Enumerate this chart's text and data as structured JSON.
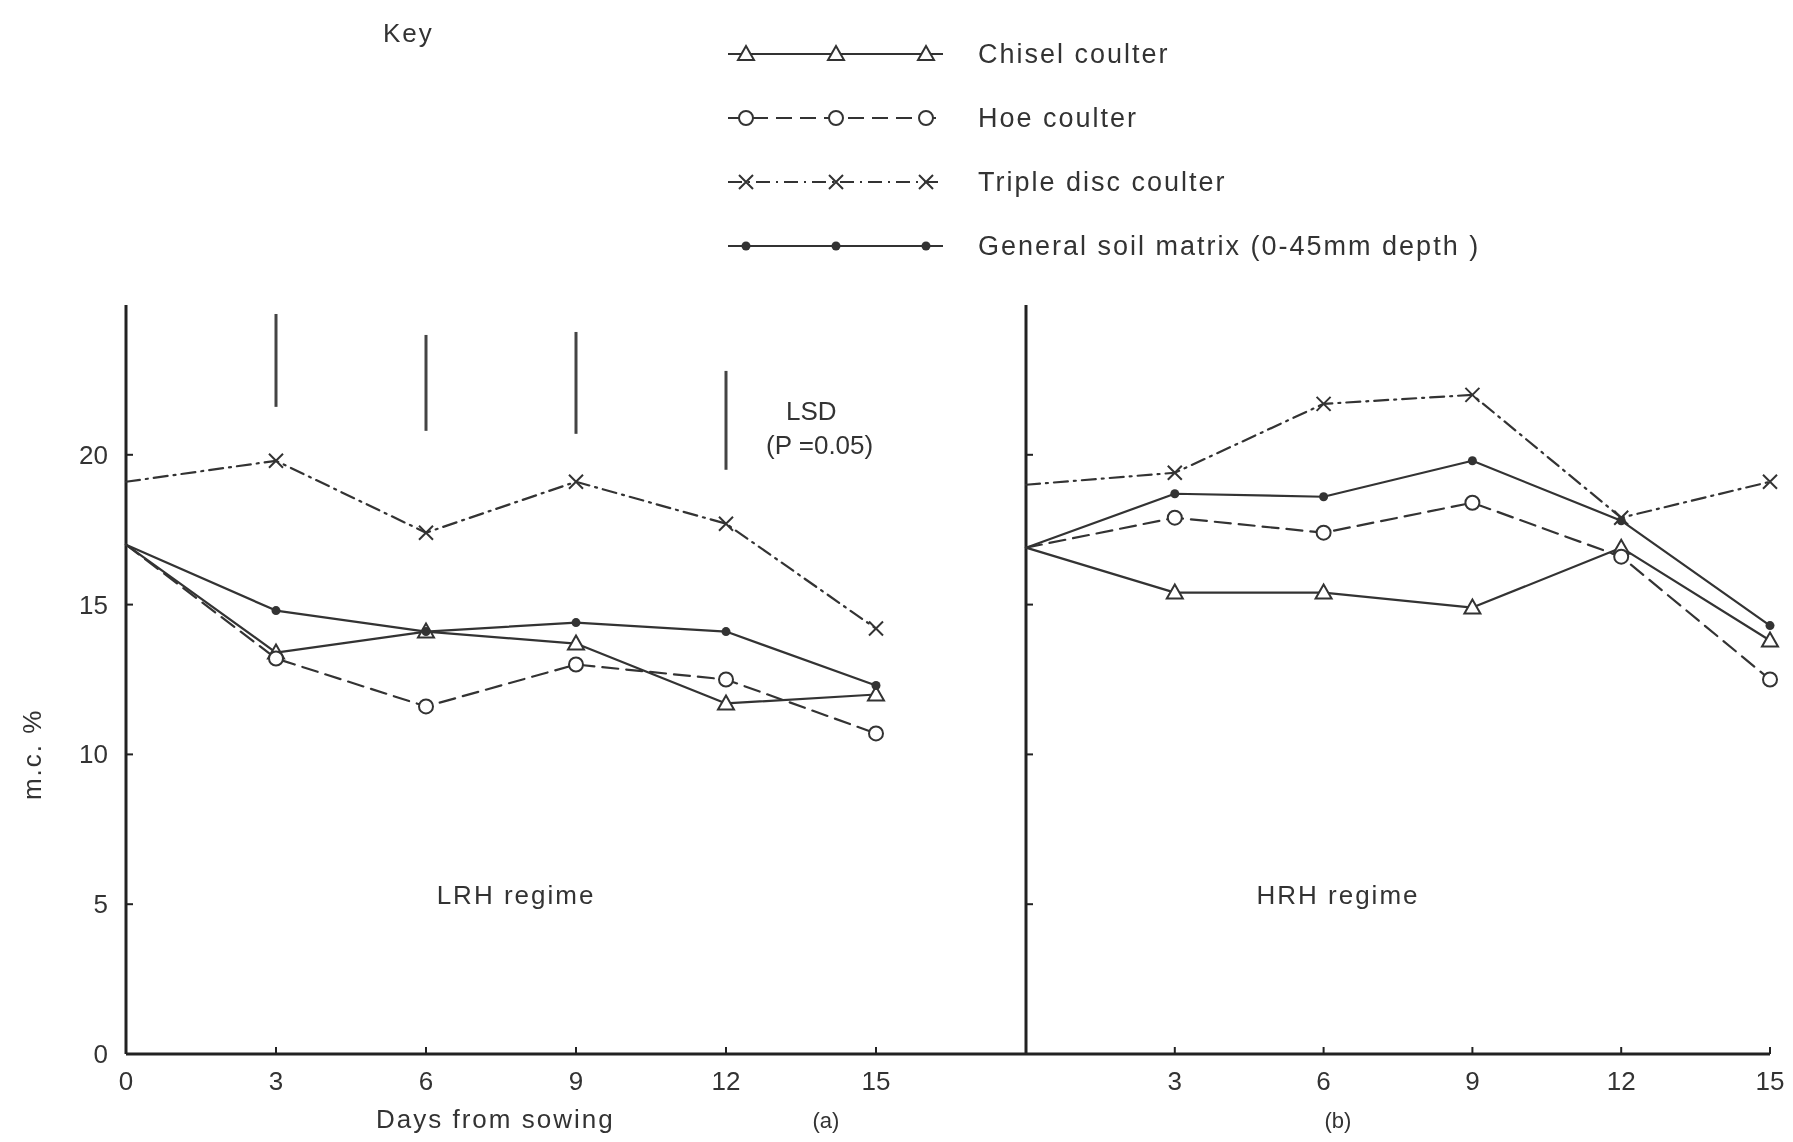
{
  "chart_data": [
    {
      "type": "line",
      "legend_title": "Key",
      "legend": "top",
      "xlabel": "Days from sowing",
      "ylabel": "m.c. %",
      "annotations": [
        "LRH regime",
        "(a)"
      ],
      "x": [
        0,
        3,
        6,
        9,
        12,
        15
      ],
      "xlim": [
        0,
        18
      ],
      "xticks": [
        0,
        3,
        6,
        9,
        12,
        15
      ],
      "ylim": [
        0,
        25
      ],
      "yticks": [
        0,
        5,
        10,
        15,
        20
      ],
      "series": [
        {
          "name": "Chisel coulter",
          "color": "#333333",
          "marker": "triangle",
          "line_style": "solid",
          "values": [
            17.0,
            13.4,
            14.1,
            13.7,
            11.7,
            12.0
          ]
        },
        {
          "name": "Hoe coulter",
          "color": "#333333",
          "marker": "circle",
          "line_style": "dashed",
          "values": [
            17.0,
            13.2,
            11.6,
            13.0,
            12.5,
            10.7
          ]
        },
        {
          "name": "Triple disc coulter",
          "color": "#333333",
          "marker": "cross",
          "line_style": "dashdot",
          "values": [
            19.1,
            19.8,
            17.4,
            19.1,
            17.7,
            14.2
          ]
        },
        {
          "name": "General soil matrix (0-45mm depth )",
          "color": "#333333",
          "marker": "circle",
          "line_style": "solid",
          "values": [
            17.0,
            14.8,
            14.1,
            14.4,
            14.1,
            12.3
          ]
        },
        {
          "name": "LSD (P =0.05)",
          "type": "bar",
          "color": "#444444",
          "x": [
            3,
            6,
            9,
            12
          ],
          "base": [
            21.6,
            20.8,
            20.7,
            19.5
          ],
          "values": [
            3.1,
            3.2,
            3.4,
            3.3
          ]
        }
      ]
    },
    {
      "type": "line",
      "legend": false,
      "tick_labels": "x",
      "annotations": [
        "HRH regime",
        "(b)"
      ],
      "x": [
        0,
        3,
        6,
        9,
        12,
        15
      ],
      "xlim": [
        0,
        15
      ],
      "xticks": [
        {
          "value": 0,
          "label": null
        },
        3,
        6,
        9,
        12,
        15
      ],
      "ylim": [
        0,
        25
      ],
      "yticks": [
        {
          "value": 0,
          "label": null
        },
        {
          "value": 5,
          "label": null
        },
        {
          "value": 10,
          "label": null
        },
        {
          "value": 15,
          "label": null
        },
        {
          "value": 20,
          "label": null
        }
      ],
      "series": [
        {
          "color": "#333333",
          "marker": "triangle",
          "line_style": "solid",
          "values": [
            16.9,
            15.4,
            15.4,
            14.9,
            16.9,
            13.8
          ]
        },
        {
          "color": "#333333",
          "marker": "circle",
          "line_style": "dashed",
          "values": [
            16.9,
            17.9,
            17.4,
            18.4,
            16.6,
            12.5
          ]
        },
        {
          "color": "#333333",
          "marker": "cross",
          "line_style": "dashdot",
          "values": [
            19.0,
            19.4,
            21.7,
            22.0,
            17.9,
            19.1
          ]
        },
        {
          "color": "#333333",
          "marker": "circle",
          "line_style": "solid",
          "values": [
            16.9,
            18.7,
            18.6,
            19.8,
            17.8,
            14.3
          ]
        }
      ]
    }
  ]
}
